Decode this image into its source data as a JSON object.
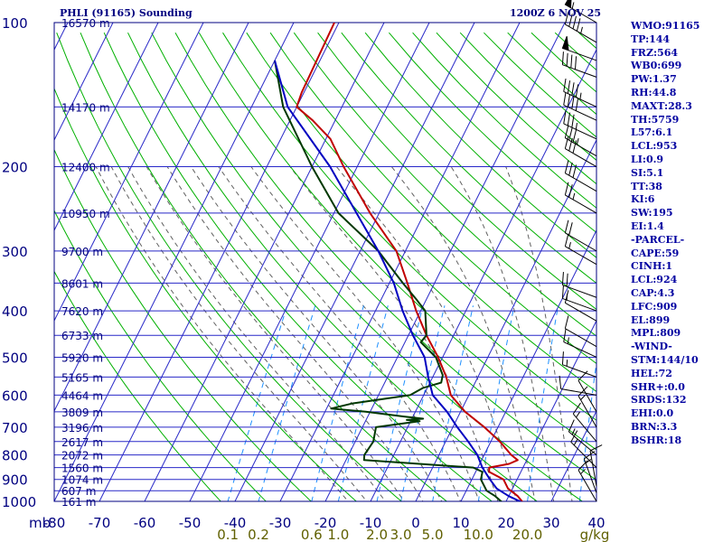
{
  "header": {
    "station_title": "PHLI (91165) Sounding",
    "time_label": "1200Z  6 NOV 25"
  },
  "chart_data": {
    "type": "line",
    "title": "PHLI (91165) Sounding",
    "subtitle": "1200Z  6 NOV 25",
    "xlabel": "",
    "ylabel": "mb",
    "xlim": [
      -80,
      40
    ],
    "ylim": [
      1000,
      100
    ],
    "x_ticks": [
      "-80",
      "-70",
      "-60",
      "-50",
      "-40",
      "-30",
      "-20",
      "-10",
      "0",
      "10",
      "20",
      "30",
      "40"
    ],
    "p_ticks": [
      "100",
      "200",
      "300",
      "400",
      "500",
      "600",
      "700",
      "800",
      "900",
      "1000"
    ],
    "y_scale": "log",
    "grid": true,
    "mixing_ratio_labels": [
      "0.1",
      "0.2",
      "0.6",
      "1.0",
      "2.0",
      "3.0",
      "5.0",
      "10.0",
      "20.0",
      "g/kg"
    ],
    "height_labels": [
      {
        "p": 100,
        "label": "16570 m"
      },
      {
        "p": 150,
        "label": "14170 m"
      },
      {
        "p": 200,
        "label": "12400 m"
      },
      {
        "p": 250,
        "label": "10950 m"
      },
      {
        "p": 300,
        "label": "9700 m"
      },
      {
        "p": 350,
        "label": "8601 m"
      },
      {
        "p": 400,
        "label": "7620 m"
      },
      {
        "p": 450,
        "label": "6733 m"
      },
      {
        "p": 500,
        "label": "5920 m"
      },
      {
        "p": 550,
        "label": "5165 m"
      },
      {
        "p": 600,
        "label": "4464 m"
      },
      {
        "p": 650,
        "label": "3809 m"
      },
      {
        "p": 700,
        "label": "3196 m"
      },
      {
        "p": 750,
        "label": "2617 m"
      },
      {
        "p": 800,
        "label": "2072 m"
      },
      {
        "p": 850,
        "label": "1560 m"
      },
      {
        "p": 900,
        "label": "1074 m"
      },
      {
        "p": 950,
        "label": "607 m"
      },
      {
        "p": 1000,
        "label": "161 m"
      }
    ],
    "series": [
      {
        "color": "#c00000",
        "points": [
          [
            1008,
            24.0
          ],
          [
            975,
            22.0
          ],
          [
            940,
            19.0
          ],
          [
            900,
            17.0
          ],
          [
            868,
            13.0
          ],
          [
            850,
            12.5
          ],
          [
            835,
            16.5
          ],
          [
            820,
            18.0
          ],
          [
            800,
            16.0
          ],
          [
            750,
            12.0
          ],
          [
            700,
            7.0
          ],
          [
            650,
            1.0
          ],
          [
            600,
            -4.0
          ],
          [
            550,
            -7.0
          ],
          [
            500,
            -11.0
          ],
          [
            450,
            -16.0
          ],
          [
            400,
            -21.0
          ],
          [
            350,
            -26.0
          ],
          [
            300,
            -32.0
          ],
          [
            250,
            -42.0
          ],
          [
            200,
            -53.0
          ],
          [
            175,
            -59.0
          ],
          [
            160,
            -65.0
          ],
          [
            150,
            -70.0
          ],
          [
            140,
            -70.5
          ],
          [
            100,
            -71.0
          ]
        ]
      },
      {
        "color": "#003800",
        "points": [
          [
            1008,
            19.5
          ],
          [
            975,
            17.0
          ],
          [
            950,
            14.5
          ],
          [
            900,
            12.0
          ],
          [
            868,
            11.5
          ],
          [
            850,
            9.0
          ],
          [
            820,
            -16.0
          ],
          [
            800,
            -16.5
          ],
          [
            750,
            -16.0
          ],
          [
            700,
            -17.0
          ],
          [
            680,
            -8.0
          ],
          [
            676,
            -11.0
          ],
          [
            672,
            -7.5
          ],
          [
            665,
            -12.0
          ],
          [
            650,
            -21.0
          ],
          [
            640,
            -29.0
          ],
          [
            625,
            -25.0
          ],
          [
            600,
            -13.0
          ],
          [
            580,
            -11.0
          ],
          [
            565,
            -7.5
          ],
          [
            545,
            -8.0
          ],
          [
            500,
            -11.5
          ],
          [
            465,
            -16.5
          ],
          [
            450,
            -16.0
          ],
          [
            400,
            -19.0
          ],
          [
            380,
            -22.0
          ],
          [
            350,
            -27.0
          ],
          [
            300,
            -36.0
          ],
          [
            250,
            -49.0
          ],
          [
            200,
            -60.0
          ],
          [
            150,
            -73.0
          ],
          [
            120,
            -80.0
          ]
        ]
      },
      {
        "color": "#0000c0",
        "points": [
          [
            1008,
            24.0
          ],
          [
            975,
            20.0
          ],
          [
            940,
            16.5
          ],
          [
            900,
            14.0
          ],
          [
            850,
            11.0
          ],
          [
            800,
            8.5
          ],
          [
            750,
            5.0
          ],
          [
            700,
            1.0
          ],
          [
            650,
            -3.0
          ],
          [
            600,
            -8.0
          ],
          [
            550,
            -11.0
          ],
          [
            500,
            -14.0
          ],
          [
            450,
            -19.0
          ],
          [
            400,
            -24.0
          ],
          [
            350,
            -29.0
          ],
          [
            300,
            -36.0
          ],
          [
            250,
            -45.0
          ],
          [
            200,
            -56.0
          ],
          [
            150,
            -72.0
          ],
          [
            120,
            -80.0
          ]
        ]
      }
    ],
    "wind_barbs": [
      {
        "p": 100,
        "dir": 300,
        "spd": 55
      },
      {
        "p": 110,
        "dir": 300,
        "spd": 45
      },
      {
        "p": 120,
        "dir": 290,
        "spd": 50
      },
      {
        "p": 130,
        "dir": 290,
        "spd": 40
      },
      {
        "p": 150,
        "dir": 295,
        "spd": 45
      },
      {
        "p": 160,
        "dir": 295,
        "spd": 40
      },
      {
        "p": 175,
        "dir": 295,
        "spd": 35
      },
      {
        "p": 190,
        "dir": 300,
        "spd": 35
      },
      {
        "p": 200,
        "dir": 300,
        "spd": 30
      },
      {
        "p": 225,
        "dir": 300,
        "spd": 30
      },
      {
        "p": 250,
        "dir": 300,
        "spd": 25
      },
      {
        "p": 300,
        "dir": 300,
        "spd": 20
      },
      {
        "p": 320,
        "dir": 300,
        "spd": 15
      },
      {
        "p": 375,
        "dir": 290,
        "spd": 20
      },
      {
        "p": 400,
        "dir": 290,
        "spd": 15
      },
      {
        "p": 420,
        "dir": 300,
        "spd": 10
      },
      {
        "p": 475,
        "dir": 300,
        "spd": 10
      },
      {
        "p": 500,
        "dir": 295,
        "spd": 15
      },
      {
        "p": 550,
        "dir": 290,
        "spd": 15
      },
      {
        "p": 600,
        "dir": 280,
        "spd": 10
      },
      {
        "p": 650,
        "dir": 330,
        "spd": 10
      },
      {
        "p": 700,
        "dir": 330,
        "spd": 15
      },
      {
        "p": 750,
        "dir": 320,
        "spd": 15
      },
      {
        "p": 800,
        "dir": 310,
        "spd": 15
      },
      {
        "p": 850,
        "dir": 315,
        "spd": 15
      },
      {
        "p": 930,
        "dir": 350,
        "spd": 10
      },
      {
        "p": 960,
        "dir": 340,
        "spd": 15
      },
      {
        "p": 1000,
        "dir": 330,
        "spd": 15
      }
    ],
    "colors": {
      "frame": "#000080",
      "isobar": "#2828c8",
      "isotherm": "#2828c8",
      "dry_adiabat": "#00b000",
      "moist_adiabat": "#606060",
      "mixing_ratio": "#1e90ff",
      "wind_barb": "#000000",
      "axis_label": "#000080",
      "mr_label": "#606000"
    }
  },
  "indices": [
    "WMO:91165",
    "TP:144",
    "FRZ:564",
    "WB0:699",
    "PW:1.37",
    "RH:44.8",
    "MAXT:28.3",
    "TH:5759",
    "L57:6.1",
    "LCL:953",
    "LI:0.9",
    "SI:5.1",
    "TT:38",
    "KI:6",
    "SW:195",
    "EI:1.4",
    "-PARCEL-",
    "CAPE:59",
    "CINH:1",
    "LCL:924",
    "CAP:4.3",
    "LFC:909",
    "EL:899",
    "MPL:809",
    "-WIND-",
    "STM:144/10",
    "HEL:72",
    "SHR+:0.0",
    "SRDS:132",
    "EHI:0.0",
    "BRN:3.3",
    "BSHR:18"
  ]
}
